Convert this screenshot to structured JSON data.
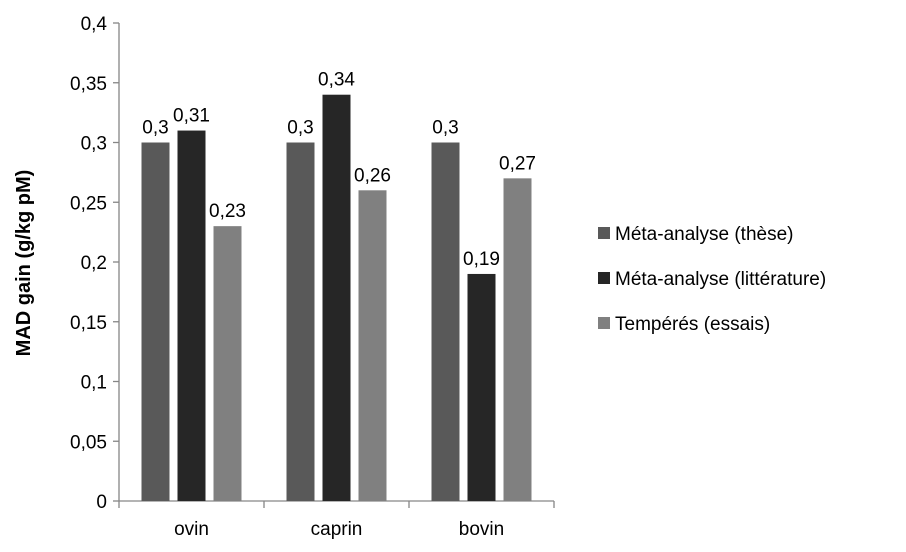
{
  "chart_data": {
    "type": "bar",
    "title": "",
    "xlabel": "",
    "ylabel": "MAD gain (g/kg pM)",
    "ylim": [
      0,
      0.4
    ],
    "yticks": [
      0,
      0.05,
      0.1,
      0.15,
      0.2,
      0.25,
      0.3,
      0.35,
      0.4
    ],
    "ytick_labels": [
      "0",
      "0,05",
      "0,1",
      "0,15",
      "0,2",
      "0,25",
      "0,3",
      "0,35",
      "0,4"
    ],
    "grid": false,
    "legend_position": "right",
    "categories": [
      "ovin",
      "caprin",
      "bovin"
    ],
    "series": [
      {
        "name": "Méta-analyse (thèse)",
        "color": "#595959",
        "values": [
          0.3,
          0.3,
          0.3
        ],
        "labels": [
          "0,3",
          "0,3",
          "0,3"
        ]
      },
      {
        "name": "Méta-analyse (littérature)",
        "color": "#262626",
        "values": [
          0.31,
          0.34,
          0.19
        ],
        "labels": [
          "0,31",
          "0,34",
          "0,19"
        ]
      },
      {
        "name": "Tempérés (essais)",
        "color": "#808080",
        "values": [
          0.23,
          0.26,
          0.27
        ],
        "labels": [
          "0,23",
          "0,26",
          "0,27"
        ]
      }
    ]
  }
}
